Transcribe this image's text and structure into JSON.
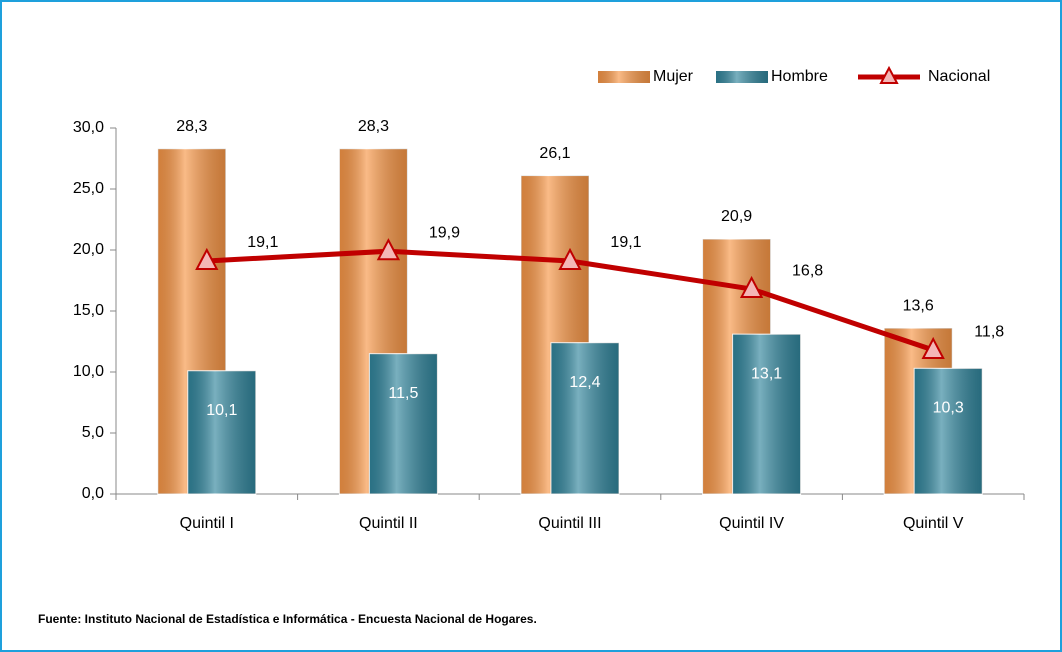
{
  "chart_data": {
    "type": "bar-line",
    "categories": [
      "Quintil I",
      "Quintil II",
      "Quintil III",
      "Quintil IV",
      "Quintil V"
    ],
    "series": [
      {
        "name": "Mujer",
        "type": "bar",
        "color": "#f79646",
        "values": [
          28.3,
          28.3,
          26.1,
          20.9,
          13.6
        ],
        "value_labels": [
          "28,3",
          "28,3",
          "26,1",
          "20,9",
          "13,6"
        ]
      },
      {
        "name": "Hombre",
        "type": "bar",
        "color": "#31859c",
        "values": [
          10.1,
          11.5,
          12.4,
          13.1,
          10.3
        ],
        "value_labels": [
          "10,1",
          "11,5",
          "12,4",
          "13,1",
          "10,3"
        ]
      },
      {
        "name": "Nacional",
        "type": "line",
        "color": "#c00000",
        "values": [
          19.1,
          19.9,
          19.1,
          16.8,
          11.8
        ],
        "value_labels": [
          "19,1",
          "19,9",
          "19,1",
          "16,8",
          "11,8"
        ]
      }
    ],
    "ylim": [
      0,
      30
    ],
    "yticks": [
      {
        "value": 0,
        "label": "0,0"
      },
      {
        "value": 5,
        "label": "5,0"
      },
      {
        "value": 10,
        "label": "10,0"
      },
      {
        "value": 15,
        "label": "15,0"
      },
      {
        "value": 20,
        "label": "20,0"
      },
      {
        "value": 25,
        "label": "25,0"
      },
      {
        "value": 30,
        "label": "30,0"
      }
    ],
    "grid": false,
    "legend": "top-right",
    "source": "Fuente: Instituto Nacional de Estadística e Informática - Encuesta Nacional de Hogares."
  }
}
